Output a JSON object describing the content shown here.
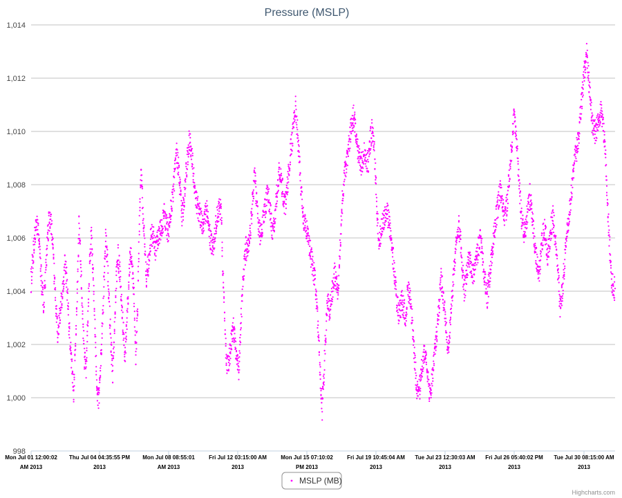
{
  "chart_data": {
    "type": "scatter",
    "title": "Pressure (MSLP)",
    "xlabel": "",
    "ylabel": "",
    "ylim": [
      998,
      1014
    ],
    "y_ticks": [
      "998",
      "1,000",
      "1,002",
      "1,004",
      "1,006",
      "1,008",
      "1,010",
      "1,012",
      "1,014"
    ],
    "x_ticks": [
      {
        "line1": "Mon Jul 01 12:00:02",
        "line2": "AM 2013"
      },
      {
        "line1": "Thu Jul 04 04:35:55 PM",
        "line2": "2013"
      },
      {
        "line1": "Mon Jul 08 08:55:01",
        "line2": "AM 2013"
      },
      {
        "line1": "Fri Jul 12 03:15:00 AM",
        "line2": "2013"
      },
      {
        "line1": "Mon Jul 15 07:10:02",
        "line2": "PM 2013"
      },
      {
        "line1": "Fri Jul 19 10:45:04 AM",
        "line2": "2013"
      },
      {
        "line1": "Tue Jul 23 12:30:03 AM",
        "line2": "2013"
      },
      {
        "line1": "Fri Jul 26 05:40:02 PM",
        "line2": "2013"
      },
      {
        "line1": "Tue Jul 30 08:15:00 AM",
        "line2": "2013"
      }
    ],
    "grid": true,
    "legend_position": "bottom-center",
    "color": "#ff00ff",
    "series": [
      {
        "name": "MSLP (MB)",
        "x_start": "2013-07-01",
        "x_end": "2013-07-31",
        "values": [
          1004.4,
          1005.2,
          1006.0,
          1006.6,
          1006.2,
          1005.4,
          1004.2,
          1003.5,
          1004.5,
          1005.8,
          1006.6,
          1006.9,
          1006.0,
          1004.6,
          1003.4,
          1002.4,
          1003.0,
          1003.6,
          1004.0,
          1005.0,
          1004.5,
          1003.2,
          1002.0,
          1001.0,
          1000.3,
          1002.0,
          1004.0,
          1006.4,
          1005.0,
          1003.2,
          1001.5,
          1001.0,
          1003.0,
          1005.0,
          1006.2,
          1004.5,
          1002.6,
          1000.5,
          999.9,
          1000.8,
          1002.5,
          1004.2,
          1006.0,
          1005.2,
          1003.5,
          1002.0,
          1001.0,
          1002.6,
          1004.5,
          1005.3,
          1004.8,
          1003.6,
          1002.4,
          1001.5,
          1003.0,
          1004.4,
          1005.4,
          1004.9,
          1003.8,
          1001.6,
          1003.5,
          1006.5,
          1008.5,
          1007.0,
          1005.6,
          1004.6,
          1005.0,
          1005.8,
          1006.1,
          1006.0,
          1005.6,
          1005.8,
          1006.0,
          1006.3,
          1006.4,
          1007.0,
          1006.6,
          1006.2,
          1006.5,
          1007.2,
          1007.6,
          1008.5,
          1009.2,
          1008.6,
          1007.8,
          1006.8,
          1007.2,
          1008.2,
          1009.0,
          1009.6,
          1009.4,
          1008.8,
          1008.0,
          1007.4,
          1007.1,
          1006.9,
          1006.6,
          1006.4,
          1006.8,
          1007.0,
          1006.5,
          1006.0,
          1005.6,
          1005.8,
          1006.5,
          1006.8,
          1007.2,
          1007.0,
          1005.0,
          1002.8,
          1001.4,
          1001.2,
          1001.7,
          1002.2,
          1002.6,
          1002.0,
          1001.3,
          1001.0,
          1002.4,
          1004.0,
          1005.0,
          1005.6,
          1005.4,
          1006.0,
          1006.6,
          1007.6,
          1008.4,
          1007.4,
          1006.5,
          1006.2,
          1006.4,
          1006.8,
          1007.2,
          1007.6,
          1007.4,
          1006.8,
          1006.2,
          1006.6,
          1007.4,
          1008.0,
          1008.6,
          1008.2,
          1007.6,
          1007.2,
          1007.6,
          1008.4,
          1009.2,
          1009.6,
          1010.4,
          1011.0,
          1010.0,
          1009.0,
          1008.0,
          1007.0,
          1006.5,
          1006.3,
          1006.0,
          1005.6,
          1005.2,
          1004.8,
          1004.4,
          1003.4,
          1002.2,
          1000.8,
          999.6,
          1000.8,
          1002.5,
          1003.6,
          1003.2,
          1003.8,
          1004.2,
          1004.6,
          1004.4,
          1004.0,
          1005.6,
          1007.0,
          1008.0,
          1008.6,
          1009.0,
          1009.4,
          1010.0,
          1010.4,
          1010.6,
          1010.0,
          1009.4,
          1009.0,
          1008.8,
          1009.0,
          1009.2,
          1009.0,
          1008.8,
          1009.6,
          1010.0,
          1009.6,
          1008.4,
          1006.8,
          1006.0,
          1006.2,
          1006.6,
          1006.8,
          1007.0,
          1006.8,
          1006.5,
          1005.8,
          1005.2,
          1004.5,
          1003.6,
          1003.2,
          1003.4,
          1003.6,
          1003.4,
          1003.0,
          1003.8,
          1004.0,
          1003.5,
          1002.6,
          1001.5,
          1000.6,
          1000.0,
          1000.4,
          1001.0,
          1001.5,
          1001.8,
          1001.2,
          1000.4,
          1000.0,
          1000.8,
          1001.6,
          1002.0,
          1002.8,
          1003.6,
          1004.4,
          1004.0,
          1003.2,
          1002.4,
          1001.8,
          1002.6,
          1003.6,
          1004.6,
          1005.4,
          1006.2,
          1006.4,
          1005.8,
          1004.8,
          1004.0,
          1004.4,
          1005.0,
          1005.2,
          1004.9,
          1004.6,
          1004.8,
          1005.2,
          1005.6,
          1006.0,
          1005.6,
          1004.8,
          1004.2,
          1003.8,
          1004.4,
          1005.0,
          1005.6,
          1006.2,
          1006.8,
          1007.2,
          1007.8,
          1007.5,
          1007.0,
          1006.8,
          1007.2,
          1008.0,
          1008.8,
          1009.6,
          1010.6,
          1010.0,
          1009.0,
          1008.0,
          1007.0,
          1006.4,
          1006.2,
          1006.6,
          1007.2,
          1007.6,
          1007.0,
          1006.2,
          1005.6,
          1005.0,
          1004.6,
          1005.2,
          1006.0,
          1006.4,
          1006.0,
          1005.4,
          1005.8,
          1006.4,
          1006.8,
          1006.2,
          1005.4,
          1004.6,
          1003.4,
          1003.8,
          1004.6,
          1005.4,
          1006.2,
          1006.8,
          1007.4,
          1008.2,
          1008.8,
          1009.2,
          1009.6,
          1010.2,
          1011.0,
          1011.8,
          1012.4,
          1013.0,
          1012.2,
          1011.2,
          1010.4,
          1010.0,
          1010.0,
          1010.2,
          1010.4,
          1010.8,
          1010.4,
          1009.8,
          1008.5,
          1007.0,
          1005.6,
          1004.5,
          1004.1,
          1004.1
        ]
      }
    ]
  },
  "credits": "Highcharts.com"
}
